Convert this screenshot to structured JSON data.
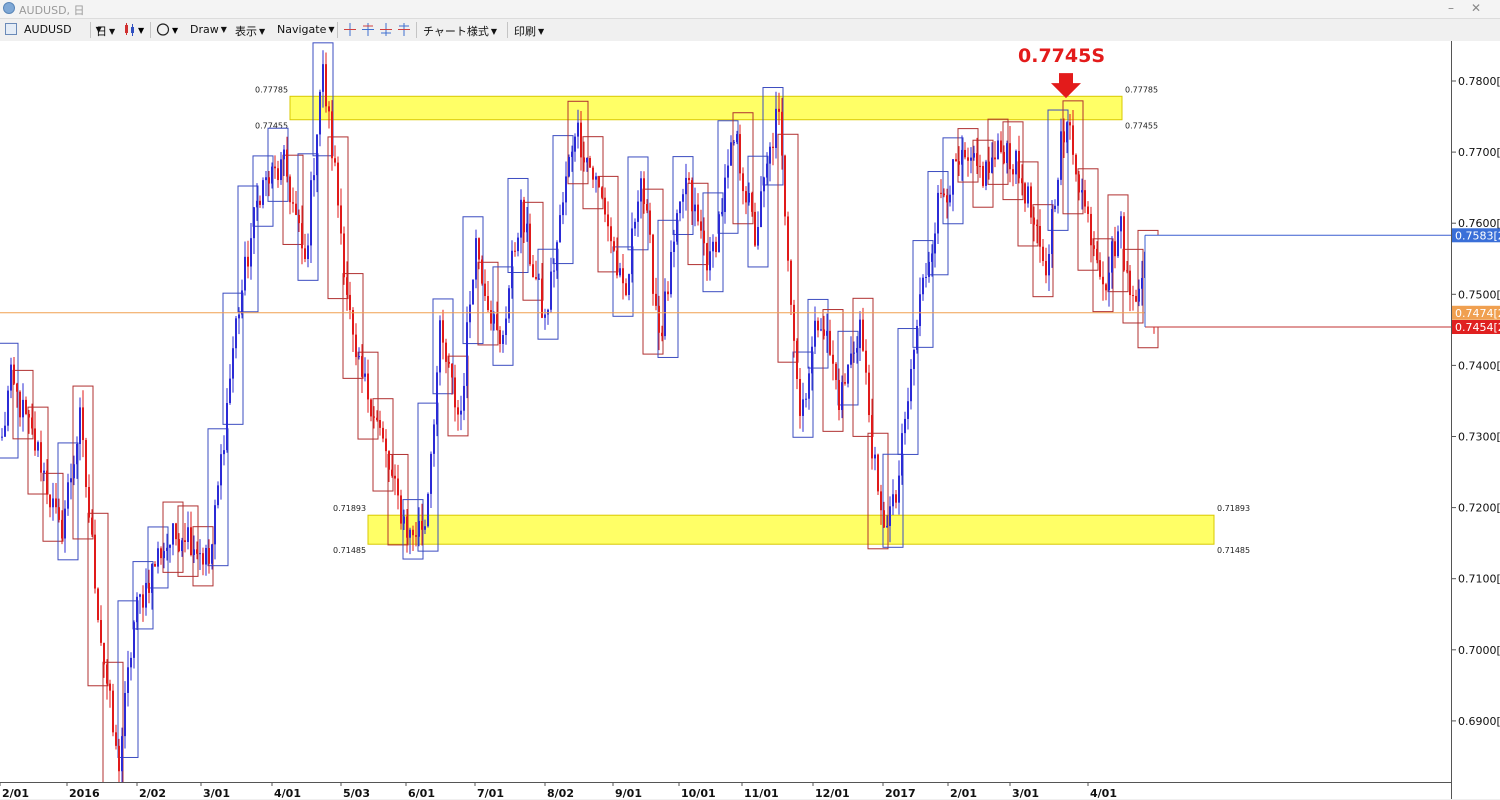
{
  "window": {
    "title": "AUDUSD, 日",
    "min_label": "–",
    "close_label": "✕"
  },
  "toolbar": {
    "symbol": "AUDUSD",
    "timeframe": "日",
    "draw": "Draw",
    "display": "表示",
    "navigate": "Navigate",
    "chart_style": "チャート様式",
    "print": "印刷",
    "icons": [
      "chart-window-icon",
      "candlestick-icon",
      "circle-tool-icon",
      "crosshair-icon",
      "crosshair-plus-icon",
      "crosshair-arrows-icon",
      "crosshair-minus-icon"
    ]
  },
  "colors": {
    "bull": "#2b2bd6",
    "bear": "#e01a1a",
    "box_blue": "#3b4cc0",
    "box_red": "#b03030",
    "zone_fill": "#ffff66",
    "current_line": "#f0a050",
    "annotation": "#e31b1b"
  },
  "annotation": {
    "label": "0.7745S"
  },
  "zones": [
    {
      "top_label": "0.77785",
      "bottom_label": "0.77455",
      "top": 0.77785,
      "bottom": 0.77455
    },
    {
      "top_label": "0.71893",
      "bottom_label": "0.71485",
      "top": 0.71893,
      "bottom": 0.71485
    }
  ],
  "price_axis": {
    "labels": [
      "0.7800[0",
      "0.7700[0",
      "0.7600[0",
      "0.7500[0",
      "0.7400[0",
      "0.7300[0",
      "0.7200[0",
      "0.7100[0",
      "0.7000[0",
      "0.6900[0"
    ],
    "tags": [
      {
        "label": "0.7583[2",
        "value": 0.7583,
        "color": "#3a6fd8"
      },
      {
        "label": "0.7474[2",
        "value": 0.7474,
        "color": "#f0a050"
      },
      {
        "label": "0.7454[2",
        "value": 0.7454,
        "color": "#e02020"
      }
    ]
  },
  "time_axis": {
    "labels": [
      "2/01",
      "2016",
      "2/02",
      "3/01",
      "4/01",
      "5/03",
      "6/01",
      "7/01",
      "8/02",
      "9/01",
      "10/01",
      "11/01",
      "12/01",
      "2017",
      "2/01",
      "3/01",
      "4/01"
    ]
  },
  "chart_data": {
    "type": "candlestick",
    "series_name": "AUDUSD",
    "timeframe": "日",
    "ylim": [
      0.681,
      0.7845
    ],
    "x": [
      "2/01",
      "2016",
      "2/02",
      "3/01",
      "4/01",
      "5/03",
      "6/01",
      "7/01",
      "8/02",
      "9/01",
      "10/01",
      "11/01",
      "12/01",
      "2017",
      "2/01",
      "3/01",
      "4/01"
    ],
    "current_price": 0.7474,
    "anchors": [
      [
        0,
        0.727
      ],
      [
        10,
        0.738
      ],
      [
        40,
        0.727
      ],
      [
        60,
        0.716
      ],
      [
        80,
        0.732
      ],
      [
        100,
        0.703
      ],
      [
        118,
        0.683
      ],
      [
        135,
        0.705
      ],
      [
        160,
        0.714
      ],
      [
        185,
        0.717
      ],
      [
        210,
        0.712
      ],
      [
        235,
        0.745
      ],
      [
        260,
        0.765
      ],
      [
        285,
        0.768
      ],
      [
        305,
        0.754
      ],
      [
        322,
        0.782
      ],
      [
        335,
        0.767
      ],
      [
        355,
        0.74
      ],
      [
        372,
        0.735
      ],
      [
        395,
        0.722
      ],
      [
        410,
        0.716
      ],
      [
        425,
        0.718
      ],
      [
        440,
        0.744
      ],
      [
        460,
        0.732
      ],
      [
        475,
        0.758
      ],
      [
        500,
        0.742
      ],
      [
        520,
        0.762
      ],
      [
        545,
        0.746
      ],
      [
        575,
        0.774
      ],
      [
        605,
        0.762
      ],
      [
        625,
        0.748
      ],
      [
        640,
        0.768
      ],
      [
        660,
        0.744
      ],
      [
        685,
        0.766
      ],
      [
        710,
        0.754
      ],
      [
        735,
        0.772
      ],
      [
        755,
        0.758
      ],
      [
        778,
        0.776
      ],
      [
        800,
        0.733
      ],
      [
        820,
        0.748
      ],
      [
        840,
        0.735
      ],
      [
        860,
        0.746
      ],
      [
        880,
        0.718
      ],
      [
        895,
        0.72
      ],
      [
        920,
        0.749
      ],
      [
        940,
        0.764
      ],
      [
        960,
        0.768
      ],
      [
        985,
        0.767
      ],
      [
        1005,
        0.771
      ],
      [
        1025,
        0.765
      ],
      [
        1045,
        0.752
      ],
      [
        1060,
        0.771
      ],
      [
        1070,
        0.773
      ],
      [
        1085,
        0.762
      ],
      [
        1105,
        0.752
      ],
      [
        1120,
        0.76
      ],
      [
        1130,
        0.749
      ],
      [
        1145,
        0.755
      ],
      [
        1155,
        0.746
      ]
    ]
  }
}
